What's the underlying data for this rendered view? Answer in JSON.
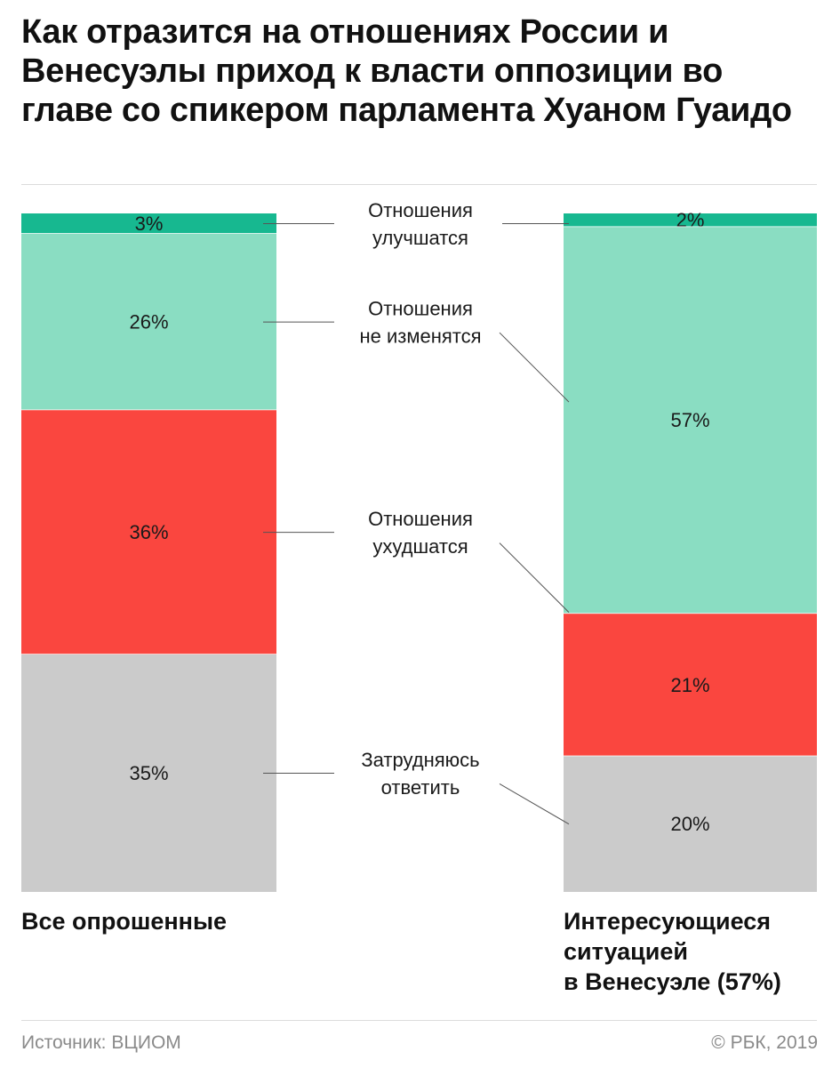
{
  "title": "Как отразится на отношениях России и Венесуэлы приход к власти оппозиции во главе со спикером парламента Хуаном Гуаидо",
  "chart_data": {
    "type": "bar",
    "stacked": true,
    "unit": "%",
    "categories": [
      "Все опрошенные",
      "Интересующиеся ситуацией в Венесуэле (57%)"
    ],
    "series": [
      {
        "name": "Отношения улучшатся",
        "lines": [
          "Отношения",
          "улучшатся"
        ],
        "values": [
          3,
          2
        ],
        "labels": [
          "3%",
          "2%"
        ],
        "color": "#17b890"
      },
      {
        "name": "Отношения не изменятся",
        "lines": [
          "Отношения",
          "не изменятся"
        ],
        "values": [
          26,
          57
        ],
        "labels": [
          "26%",
          "57%"
        ],
        "color": "#8addc2"
      },
      {
        "name": "Отношения ухудшатся",
        "lines": [
          "Отношения",
          "ухудшатся"
        ],
        "values": [
          36,
          21
        ],
        "labels": [
          "36%",
          "21%"
        ],
        "color": "#fa463f"
      },
      {
        "name": "Затрудняюсь ответить",
        "lines": [
          "Затрудняюсь",
          "ответить"
        ],
        "values": [
          35,
          20
        ],
        "labels": [
          "35%",
          "20%"
        ],
        "color": "#cbcbcb"
      }
    ],
    "ylim": [
      0,
      100
    ]
  },
  "columns": {
    "left_title": "Все опрошенные",
    "right_title_lines": [
      "Интересующиеся",
      "ситуацией",
      "в Венесуэле (57%)"
    ]
  },
  "footer": {
    "source": "Источник: ВЦИОМ",
    "copyright": "© РБК, 2019"
  }
}
